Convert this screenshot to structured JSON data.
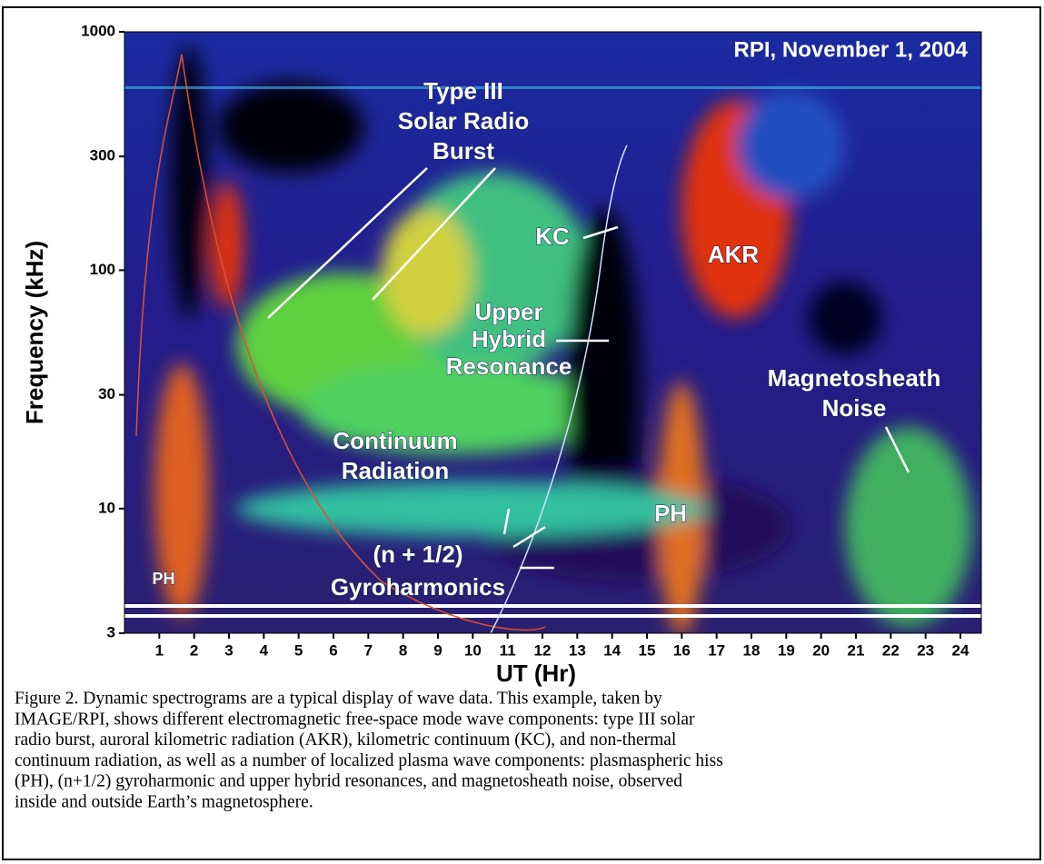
{
  "chart_data": {
    "type": "spectrogram",
    "title": "RPI, November 1, 2004",
    "xlabel": "UT (Hr)",
    "ylabel": "Frequency (kHz)",
    "xlim": [
      0,
      24.6
    ],
    "xticks": [
      1,
      2,
      3,
      4,
      5,
      6,
      7,
      8,
      9,
      10,
      11,
      12,
      13,
      14,
      15,
      16,
      17,
      18,
      19,
      20,
      21,
      22,
      23,
      24
    ],
    "ylim": [
      3,
      1000
    ],
    "yticks": [
      3,
      10,
      30,
      100,
      300,
      1000
    ],
    "log_y": true,
    "annotations": [
      [
        "Type III",
        "Solar Radio",
        "Burst"
      ],
      [
        "KC"
      ],
      [
        "AKR"
      ],
      [
        "Upper",
        "Hybrid",
        "Resonance"
      ],
      [
        "Magnetosheath",
        "Noise"
      ],
      [
        "Continuum",
        "Radiation"
      ],
      [
        "(n + 1/2)",
        "Gyroharmonics"
      ],
      [
        "PH"
      ],
      [
        "PH"
      ]
    ]
  },
  "caption": [
    "Figure 2. Dynamic spectrograms are a typical display of wave data. This example, taken by",
    "IMAGE/RPI, shows different electromagnetic free-space mode wave components: type III solar",
    "radio burst, auroral kilometric radiation (AKR), kilometric continuum (KC), and non-thermal",
    "continuum radiation, as well as a number of localized plasma wave components: plasmaspheric hiss",
    "(PH), (n+1/2) gyroharmonic and upper hybrid resonances, and magnetosheath noise, observed",
    "inside and outside Earth’s magnetosphere."
  ]
}
